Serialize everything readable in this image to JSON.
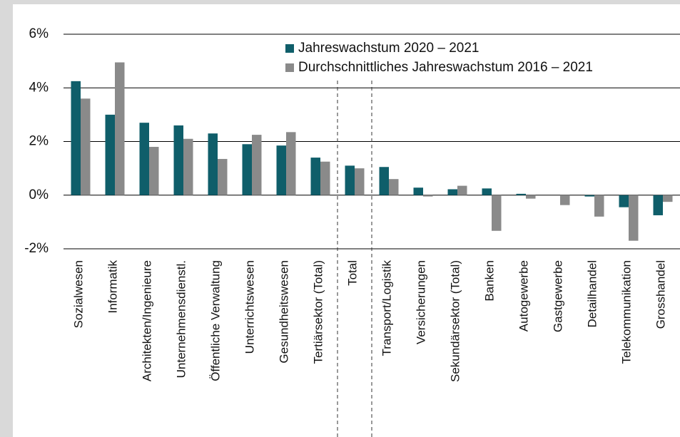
{
  "chart_data": {
    "type": "bar",
    "categories": [
      "Sozialwesen",
      "Informatik",
      "Architekten/Ingenieure",
      "Unternehmensdienstl.",
      "Öffentliche Verwaltung",
      "Unterrichtswesen",
      "Gesundheitswesen",
      "Tertiärsektor (Total)",
      "Total",
      "Transport/Logistik",
      "Versicherungen",
      "Sekundärsektor (Total)",
      "Banken",
      "Autogewerbe",
      "Gastgewerbe",
      "Detailhandel",
      "Telekommunikation",
      "Grosshandel"
    ],
    "series": [
      {
        "name": "Jahreswachstum 2020 – 2021",
        "color": "#0f5e6a",
        "values": [
          4.25,
          3.0,
          2.7,
          2.6,
          2.3,
          1.9,
          1.85,
          1.4,
          1.1,
          1.05,
          0.28,
          0.22,
          0.25,
          0.05,
          0.0,
          -0.05,
          -0.45,
          -0.75
        ]
      },
      {
        "name": "Durchschnittliches Jahreswachstum 2016 – 2021",
        "color": "#8a8a8a",
        "values": [
          3.6,
          4.95,
          1.8,
          2.1,
          1.35,
          2.25,
          2.35,
          1.25,
          1.0,
          0.6,
          -0.05,
          0.35,
          -1.33,
          -0.13,
          -0.37,
          -0.8,
          -1.7,
          -0.25
        ]
      }
    ],
    "ylim": [
      -2,
      6
    ],
    "yticks": [
      {
        "value": -2,
        "label": "-2%"
      },
      {
        "value": 0,
        "label": "0%"
      },
      {
        "value": 2,
        "label": "2%"
      },
      {
        "value": 4,
        "label": "4%"
      },
      {
        "value": 6,
        "label": "6%"
      }
    ],
    "grid": true,
    "legend": "top-right"
  }
}
